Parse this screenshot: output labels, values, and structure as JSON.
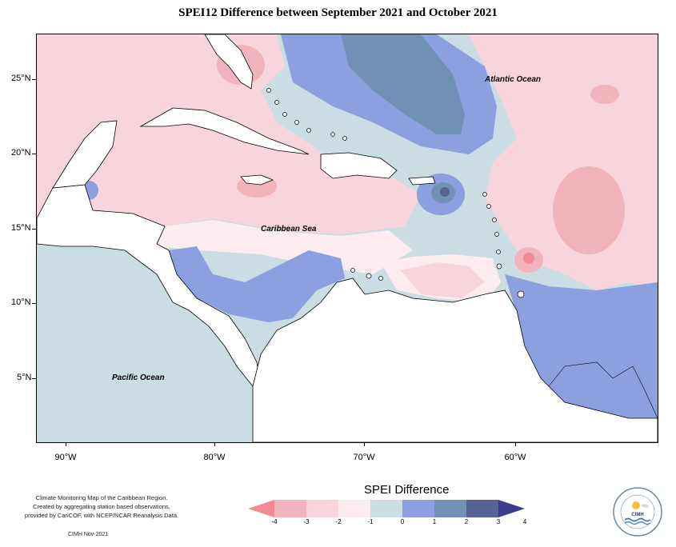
{
  "title": "SPEI12 Difference between September 2021 and October 2021",
  "map": {
    "region": "Caribbean",
    "lon_range": [
      -92,
      -52
    ],
    "lat_range": [
      1.5,
      27.5
    ],
    "lat_ticks": [
      {
        "value": 25,
        "label": "25°N"
      },
      {
        "value": 20,
        "label": "20°N"
      },
      {
        "value": 15,
        "label": "15°N"
      },
      {
        "value": 10,
        "label": "10°N"
      },
      {
        "value": 5,
        "label": "5°N"
      }
    ],
    "lon_ticks": [
      {
        "value": -90,
        "label": "90°W"
      },
      {
        "value": -80,
        "label": "80°W"
      },
      {
        "value": -70,
        "label": "70°W"
      },
      {
        "value": -60,
        "label": "60°W"
      }
    ],
    "labels": {
      "atlantic": "Atlantic Ocean",
      "caribbean": "Caribbean Sea",
      "pacific": "Pacific Ocean"
    }
  },
  "legend": {
    "title": "SPEI Difference",
    "ticks": [
      "-4",
      "-3",
      "-2",
      "-1",
      "0",
      "1",
      "2",
      "3",
      "4"
    ],
    "colors": [
      "#f08a95",
      "#f1b4bc",
      "#f8d5dc",
      "#fdecef",
      "#c9dde3",
      "#8c9fdf",
      "#7090b4",
      "#556494",
      "#3c3b8e"
    ]
  },
  "credit": {
    "line1": "Climate Monitoring Map of the Caribbean Region.",
    "line2": "Created by aggregating station based observations,",
    "line3": "provided by CariCOF, with NCEP/NCAR Reanalysis Data.",
    "date": "CIMH Nov-2021"
  },
  "logo": {
    "text": "CIMH"
  }
}
